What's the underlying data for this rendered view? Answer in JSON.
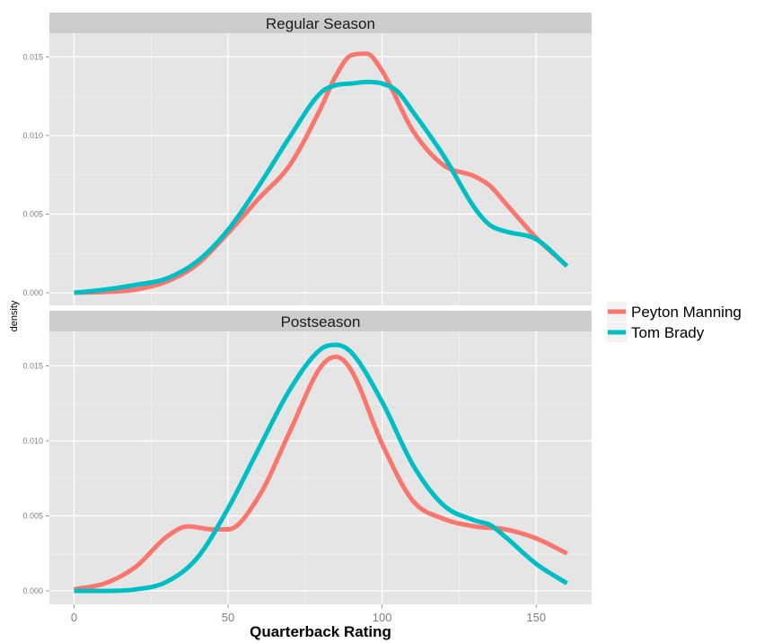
{
  "chart_data": {
    "type": "line",
    "subtype": "density",
    "xlabel": "Quarterback Rating",
    "ylabel": "density",
    "xlim": [
      -8,
      168
    ],
    "x_ticks": [
      0,
      50,
      100,
      150
    ],
    "x_tick_labels": [
      "0",
      "50",
      "100",
      "150"
    ],
    "y_ticks": [
      0,
      0.005,
      0.01,
      0.015
    ],
    "y_tick_labels": [
      "0.000",
      "0.005",
      "0.010",
      "0.015"
    ],
    "legend": {
      "position": "right",
      "entries": [
        {
          "name": "Peyton Manning",
          "color": "#F8766D"
        },
        {
          "name": "Tom Brady",
          "color": "#00BFC4"
        }
      ]
    },
    "panels": [
      {
        "title": "Regular Season",
        "ylim": [
          -0.0008,
          0.0165
        ],
        "series": [
          {
            "name": "Peyton Manning",
            "color": "#F8766D",
            "x": [
              0,
              10,
              20,
              30,
              40,
              50,
              60,
              70,
              80,
              85,
              90,
              95,
              100,
              110,
              120,
              130,
              135,
              140,
              150,
              160
            ],
            "y": [
              0.0,
              5e-05,
              0.0002,
              0.0007,
              0.0018,
              0.0038,
              0.006,
              0.0081,
              0.0117,
              0.0138,
              0.0151,
              0.0152,
              0.0141,
              0.0103,
              0.0081,
              0.0074,
              0.0068,
              0.0057,
              0.0035,
              0.0017
            ]
          },
          {
            "name": "Tom Brady",
            "color": "#00BFC4",
            "x": [
              0,
              10,
              20,
              30,
              40,
              50,
              60,
              70,
              80,
              85,
              90,
              95,
              100,
              105,
              110,
              120,
              130,
              135,
              140,
              150,
              160
            ],
            "y": [
              0.0,
              0.0002,
              0.0005,
              0.0009,
              0.002,
              0.004,
              0.0068,
              0.0099,
              0.0127,
              0.0132,
              0.0133,
              0.0134,
              0.0133,
              0.0128,
              0.0115,
              0.0087,
              0.0054,
              0.0043,
              0.0039,
              0.0034,
              0.0017
            ]
          }
        ]
      },
      {
        "title": "Postseason",
        "ylim": [
          -0.0009,
          0.0173
        ],
        "series": [
          {
            "name": "Peyton Manning",
            "color": "#F8766D",
            "x": [
              0,
              10,
              20,
              30,
              37,
              45,
              50,
              60,
              70,
              80,
              85,
              90,
              100,
              110,
              120,
              130,
              140,
              150,
              160
            ],
            "y": [
              0.0001,
              0.0005,
              0.0016,
              0.0036,
              0.0043,
              0.0041,
              0.0041,
              0.0063,
              0.0106,
              0.0149,
              0.0156,
              0.0147,
              0.0098,
              0.006,
              0.0048,
              0.0043,
              0.0041,
              0.0035,
              0.0025
            ]
          },
          {
            "name": "Tom Brady",
            "color": "#00BFC4",
            "x": [
              0,
              10,
              20,
              30,
              40,
              50,
              60,
              70,
              80,
              85,
              90,
              100,
              110,
              120,
              130,
              135,
              140,
              150,
              160
            ],
            "y": [
              0.0,
              0.0,
              0.0001,
              0.0006,
              0.0022,
              0.0055,
              0.0095,
              0.0134,
              0.0161,
              0.0164,
              0.0159,
              0.0126,
              0.0084,
              0.0057,
              0.0047,
              0.0044,
              0.0036,
              0.0018,
              0.0005
            ]
          }
        ]
      }
    ]
  }
}
